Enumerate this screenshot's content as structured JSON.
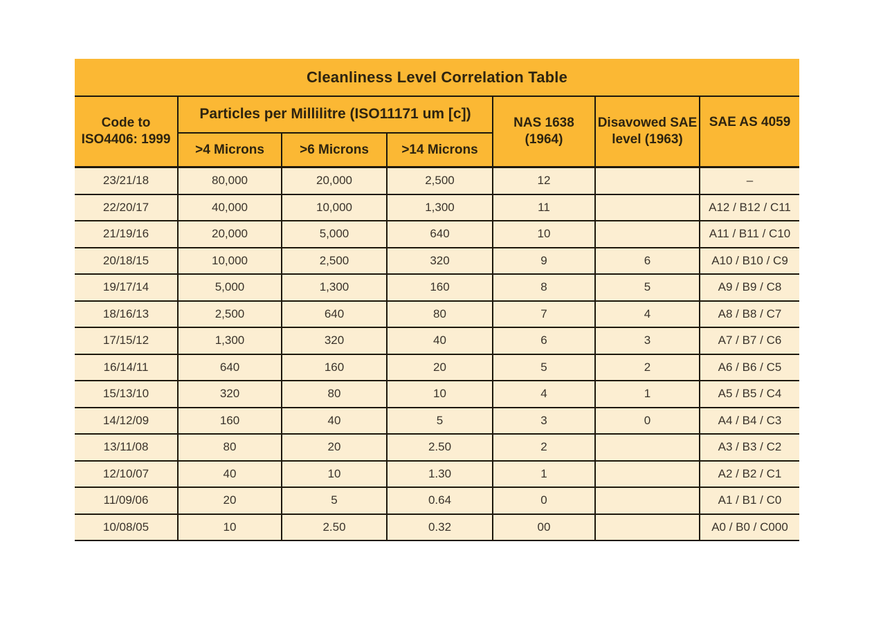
{
  "title": "Cleanliness Level Correlation Table",
  "colors": {
    "header_bg": "#FBB834",
    "row_bg": "#FCEED2",
    "border": "#1D180C",
    "header_text": "#2E2410",
    "body_text": "#3A332B"
  },
  "header": {
    "code_line1": "Code to",
    "code_line2": "ISO4406: 1999",
    "particles_group": "Particles per Millilitre (ISO11171 um [c])",
    "micron4": ">4 Microns",
    "micron6": ">6 Microns",
    "micron14": ">14 Microns",
    "nas_line1": "NAS 1638",
    "nas_line2": "(1964)",
    "disavowed_line1": "Disavowed SAE",
    "disavowed_line2": "level (1963)",
    "sae_as": "SAE AS 4059"
  },
  "chart_data": {
    "type": "table",
    "columns": [
      "Code to ISO4406: 1999",
      ">4 Microns",
      ">6 Microns",
      ">14 Microns",
      "NAS 1638 (1964)",
      "Disavowed SAE level (1963)",
      "SAE AS 4059"
    ],
    "rows": [
      [
        "23/21/18",
        "80,000",
        "20,000",
        "2,500",
        "12",
        "",
        "–"
      ],
      [
        "22/20/17",
        "40,000",
        "10,000",
        "1,300",
        "11",
        "",
        "A12 / B12 / C11"
      ],
      [
        "21/19/16",
        "20,000",
        "5,000",
        "640",
        "10",
        "",
        "A11 / B11 / C10"
      ],
      [
        "20/18/15",
        "10,000",
        "2,500",
        "320",
        "9",
        "6",
        "A10 / B10 / C9"
      ],
      [
        "19/17/14",
        "5,000",
        "1,300",
        "160",
        "8",
        "5",
        "A9 / B9 / C8"
      ],
      [
        "18/16/13",
        "2,500",
        "640",
        "80",
        "7",
        "4",
        "A8 / B8 / C7"
      ],
      [
        "17/15/12",
        "1,300",
        "320",
        "40",
        "6",
        "3",
        "A7 / B7 / C6"
      ],
      [
        "16/14/11",
        "640",
        "160",
        "20",
        "5",
        "2",
        "A6 / B6 / C5"
      ],
      [
        "15/13/10",
        "320",
        "80",
        "10",
        "4",
        "1",
        "A5 / B5 / C4"
      ],
      [
        "14/12/09",
        "160",
        "40",
        "5",
        "3",
        "0",
        "A4 / B4 / C3"
      ],
      [
        "13/11/08",
        "80",
        "20",
        "2.50",
        "2",
        "",
        "A3 / B3 / C2"
      ],
      [
        "12/10/07",
        "40",
        "10",
        "1.30",
        "1",
        "",
        "A2 / B2 / C1"
      ],
      [
        "11/09/06",
        "20",
        "5",
        "0.64",
        "0",
        "",
        "A1 / B1 / C0"
      ],
      [
        "10/08/05",
        "10",
        "2.50",
        "0.32",
        "00",
        "",
        "A0 / B0 / C000"
      ]
    ]
  }
}
